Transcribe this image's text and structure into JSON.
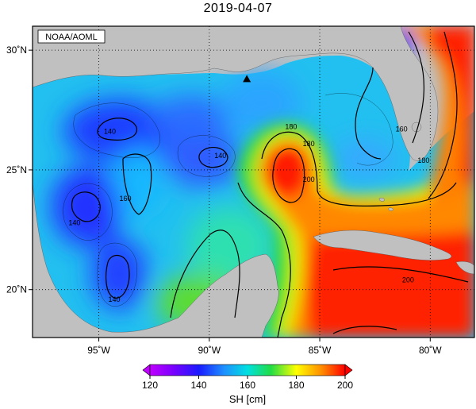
{
  "title": "2019-04-07",
  "credit": "NOAA/AOML",
  "colors": {
    "land": "#c0c0c0",
    "frame": "#000000",
    "marker": "#000000"
  },
  "map": {
    "lon_range": [
      -98,
      -78
    ],
    "lat_range": [
      18,
      31
    ],
    "x_ticks": [
      {
        "lon": -95,
        "label": "95˚W"
      },
      {
        "lon": -90,
        "label": "90˚W"
      },
      {
        "lon": -85,
        "label": "85˚W"
      },
      {
        "lon": -80,
        "label": "80˚W"
      }
    ],
    "y_ticks": [
      {
        "lat": 30,
        "label": "30˚N"
      },
      {
        "lat": 25,
        "label": "25˚N"
      },
      {
        "lat": 20,
        "label": "20˚N"
      }
    ],
    "grid": "dotted",
    "contour_labels": [
      {
        "text": "140",
        "lon": -94.5,
        "lat": 26.5
      },
      {
        "text": "140",
        "lon": -89.5,
        "lat": 25.5
      },
      {
        "text": "140",
        "lon": -96.1,
        "lat": 22.7
      },
      {
        "text": "140",
        "lon": -94.3,
        "lat": 19.5
      },
      {
        "text": "160",
        "lon": -93.8,
        "lat": 23.7
      },
      {
        "text": "160",
        "lon": -81.3,
        "lat": 26.6
      },
      {
        "text": "180",
        "lon": -86.3,
        "lat": 26.7
      },
      {
        "text": "180",
        "lon": -85.5,
        "lat": 26.0
      },
      {
        "text": "180",
        "lon": -80.3,
        "lat": 25.3
      },
      {
        "text": "200",
        "lon": -85.5,
        "lat": 24.5
      },
      {
        "text": "200",
        "lon": -81.0,
        "lat": 20.3
      }
    ],
    "marker": {
      "shape": "triangle",
      "lon": -88.3,
      "lat": 28.8
    }
  },
  "colorbar": {
    "ticks": [
      "120",
      "140",
      "160",
      "180",
      "200"
    ],
    "label": "SH [cm]",
    "range": [
      120,
      200
    ]
  }
}
